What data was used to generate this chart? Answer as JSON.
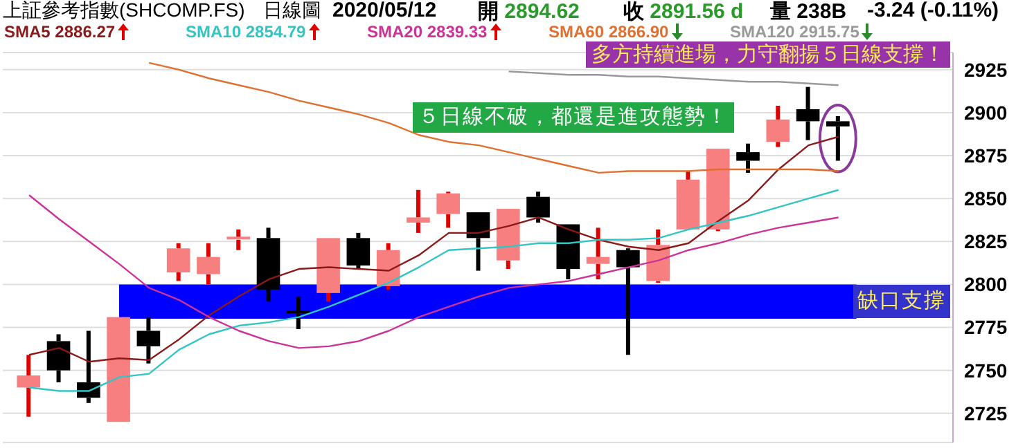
{
  "chart_data": {
    "type": "candlestick",
    "title": "上証參考指數(SHCOMP.FS)",
    "annotations": [
      "日線圖",
      "2020/05/12",
      "開 2894.62",
      "收 2891.56 d",
      "量 238B",
      "-3.24 (-0.11%)",
      "５日線不破，都還是進攻態勢！",
      "多方持續進場，力守翻揚５日線支撐！"
    ],
    "categories": [
      null,
      null,
      null,
      null,
      null,
      null,
      null,
      null,
      null,
      null,
      null,
      null,
      null,
      null,
      null,
      null,
      null,
      null,
      null,
      null,
      null,
      null,
      null,
      null,
      null,
      null,
      null,
      null
    ],
    "ohlc": [
      [
        2740,
        2759,
        2723,
        2747
      ],
      [
        2767,
        2771,
        2743,
        2750
      ],
      [
        2743,
        2773,
        2731,
        2734
      ],
      [
        2720,
        2781,
        2720,
        2781
      ],
      [
        2773,
        2781,
        2754,
        2764
      ],
      [
        2807,
        2824,
        2802,
        2821
      ],
      [
        2806,
        2824,
        2800,
        2816
      ],
      [
        2826,
        2832,
        2820,
        2827
      ],
      [
        2827,
        2833,
        2790,
        2797
      ],
      [
        2784,
        2793,
        2774,
        2783
      ],
      [
        2795,
        2827,
        2790,
        2827
      ],
      [
        2827,
        2830,
        2809,
        2811
      ],
      [
        2799,
        2824,
        2797,
        2820
      ],
      [
        2836,
        2855,
        2830,
        2839
      ],
      [
        2841,
        2854,
        2833,
        2853
      ],
      [
        2842,
        2842,
        2808,
        2827
      ],
      [
        2814,
        2844,
        2809,
        2844
      ],
      [
        2851,
        2854,
        2836,
        2839
      ],
      [
        2835,
        2835,
        2803,
        2809
      ],
      [
        2812,
        2833,
        2803,
        2816
      ],
      [
        2820,
        2821,
        2759,
        2810
      ],
      [
        2802,
        2832,
        2801,
        2823
      ],
      [
        2832,
        2866,
        2832,
        2861
      ],
      [
        2832,
        2879,
        2831,
        2879
      ],
      [
        2877,
        2882,
        2865,
        2872
      ],
      [
        2883,
        2904,
        2880,
        2896
      ],
      [
        2902,
        2915,
        2884,
        2895
      ],
      [
        2895,
        2898,
        2872,
        2892
      ]
    ],
    "colors": [
      "#f77f7f",
      "#000000",
      "#000000",
      "#f77f7f",
      "#000000",
      "#f77f7f",
      "#f77f7f",
      "#f77f7f",
      "#000000",
      "#000000",
      "#f77f7f",
      "#000000",
      "#f77f7f",
      "#f77f7f",
      "#f77f7f",
      "#000000",
      "#f77f7f",
      "#000000",
      "#000000",
      "#f77f7f",
      "#000000",
      "#f77f7f",
      "#f77f7f",
      "#f77f7f",
      "#000000",
      "#f77f7f",
      "#000000",
      "#000000"
    ],
    "series": [
      {
        "type": "line",
        "name": "SMA5 2886.27",
        "color": "#8b1a1a",
        "values": [
          2759,
          2763,
          2755,
          2757,
          2756,
          2768,
          2782,
          2793,
          2803,
          2809,
          2810,
          2809,
          2808,
          2817,
          2830,
          2830,
          2834,
          2839,
          2832,
          2826,
          2822,
          2820,
          2824,
          2837,
          2849,
          2867,
          2881,
          2886
        ]
      },
      {
        "type": "line",
        "name": "SMA10 2854.79",
        "color": "#33c4c4",
        "values": [
          2740,
          2738,
          2738,
          2746,
          2748,
          2762,
          2771,
          2776,
          2778,
          2781,
          2787,
          2794,
          2801,
          2810,
          2820,
          2821,
          2822,
          2824,
          2824,
          2826,
          2826,
          2827,
          2832,
          2836,
          2840,
          2845,
          2850,
          2855
        ]
      },
      {
        "type": "line",
        "name": "SMA20 2839.33",
        "color": "#cc3399",
        "values": [
          2852,
          2838,
          2825,
          2812,
          2798,
          2791,
          2781,
          2773,
          2767,
          2763,
          2764,
          2767,
          2773,
          2781,
          2787,
          2793,
          2798,
          2800,
          2802,
          2806,
          2810,
          2814,
          2820,
          2824,
          2829,
          2833,
          2836,
          2839
        ]
      },
      {
        "type": "line",
        "name": "SMA60 2866.90",
        "color": "#e07030",
        "values": [
          null,
          null,
          null,
          null,
          2929,
          2925,
          2920,
          2916,
          2912,
          2907,
          2903,
          2899,
          2894,
          2887,
          2883,
          2881,
          2877,
          2873,
          2869,
          2865,
          2866,
          2866,
          2866,
          2867,
          2867,
          2867,
          2867,
          2866
        ]
      },
      {
        "type": "line",
        "name": "SMA120 2915.75",
        "color": "#999999",
        "values": [
          null,
          null,
          null,
          null,
          null,
          null,
          null,
          null,
          null,
          null,
          null,
          null,
          null,
          null,
          null,
          null,
          2924,
          2923,
          2922,
          2922,
          2921,
          2921,
          2920,
          2919,
          2918,
          2918,
          2917,
          2916
        ]
      }
    ],
    "bands": [
      {
        "axis": "y",
        "from": 2780,
        "to": 2800,
        "label": "缺口支撐",
        "color": "#0000ff"
      }
    ],
    "ylim": [
      2708,
      2935
    ],
    "yticks": [
      2725,
      2750,
      2775,
      2800,
      2825,
      2850,
      2875,
      2900,
      2925
    ],
    "grid": "y",
    "legend": "top",
    "tick_labels": "y"
  }
}
